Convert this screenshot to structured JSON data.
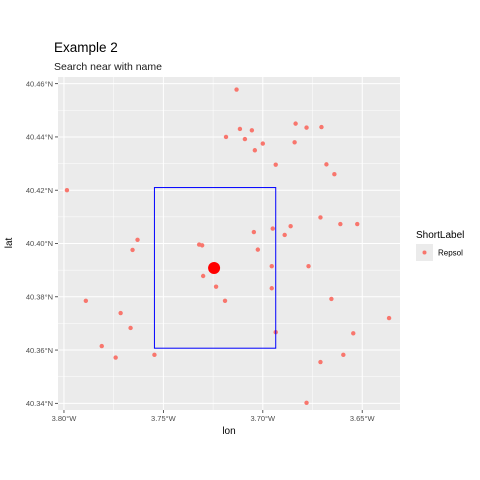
{
  "chart_data": {
    "type": "scatter",
    "title": "Example 2",
    "subtitle": "Search near with name",
    "xlabel": "lon",
    "ylabel": "lat",
    "xlim": [
      -3.803,
      -3.631
    ],
    "ylim": [
      40.3375,
      40.4625
    ],
    "x_ticks": [
      -3.8,
      -3.75,
      -3.7,
      -3.65
    ],
    "x_tick_labels": [
      "3.80°W",
      "3.75°W",
      "3.70°W",
      "3.65°W"
    ],
    "y_ticks": [
      40.34,
      40.36,
      40.38,
      40.4,
      40.42,
      40.44,
      40.46
    ],
    "y_tick_labels": [
      "40.34°N",
      "40.36°N",
      "40.38°N",
      "40.40°N",
      "40.42°N",
      "40.44°N",
      "40.46°N"
    ],
    "grid": true,
    "legend": {
      "title": "ShortLabel",
      "position": "right",
      "entries": [
        {
          "label": "Repsol",
          "color": "#F8766D"
        }
      ]
    },
    "series": [
      {
        "name": "Repsol",
        "color": "#F8766D",
        "x": [
          -3.7132,
          -3.7185,
          -3.7115,
          -3.7055,
          -3.709,
          -3.7,
          -3.704,
          -3.6935,
          -3.6835,
          -3.678,
          -3.6705,
          -3.684,
          -3.668,
          -3.664,
          -3.7985,
          -3.732,
          -3.7305,
          -3.763,
          -3.7655,
          -3.7045,
          -3.695,
          -3.686,
          -3.689,
          -3.671,
          -3.661,
          -3.6525,
          -3.7025,
          -3.6955,
          -3.677,
          -3.73,
          -3.7235,
          -3.719,
          -3.6955,
          -3.789,
          -3.7715,
          -3.7665,
          -3.6935,
          -3.6655,
          -3.6365,
          -3.6545,
          -3.781,
          -3.774,
          -3.7545,
          -3.6595,
          -3.671,
          -3.678
        ],
        "y": [
          40.4578,
          40.44,
          40.443,
          40.4425,
          40.4392,
          40.4375,
          40.435,
          40.4296,
          40.445,
          40.4435,
          40.4437,
          40.438,
          40.4297,
          40.426,
          40.42,
          40.3996,
          40.3993,
          40.4014,
          40.3976,
          40.4043,
          40.4056,
          40.4065,
          40.4032,
          40.4098,
          40.4073,
          40.4073,
          40.3977,
          40.3915,
          40.3915,
          40.3878,
          40.3838,
          40.3785,
          40.3832,
          40.3785,
          40.3739,
          40.3683,
          40.3667,
          40.3792,
          40.372,
          40.3663,
          40.3615,
          40.3572,
          40.3582,
          40.3582,
          40.3555,
          40.3402
        ]
      }
    ],
    "highlight_point": {
      "x": -3.7245,
      "y": 40.3908,
      "color": "#FF0000"
    },
    "bounding_box": {
      "xmin": -3.7545,
      "xmax": -3.6935,
      "ymin": 40.3607,
      "ymax": 40.421,
      "color": "#0000FF"
    }
  }
}
